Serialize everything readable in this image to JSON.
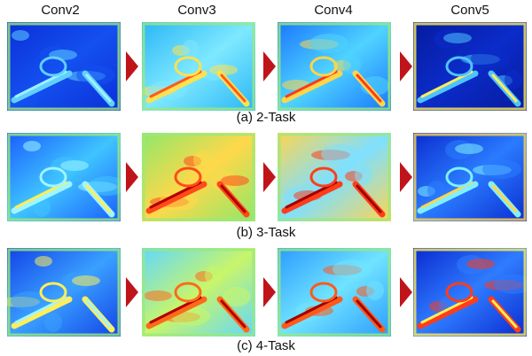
{
  "columns": [
    "Conv2",
    "Conv3",
    "Conv4",
    "Conv5"
  ],
  "rows": [
    {
      "caption": "(a) 2-Task"
    },
    {
      "caption": "(b) 3-Task"
    },
    {
      "caption": "(c) 4-Task"
    }
  ]
}
